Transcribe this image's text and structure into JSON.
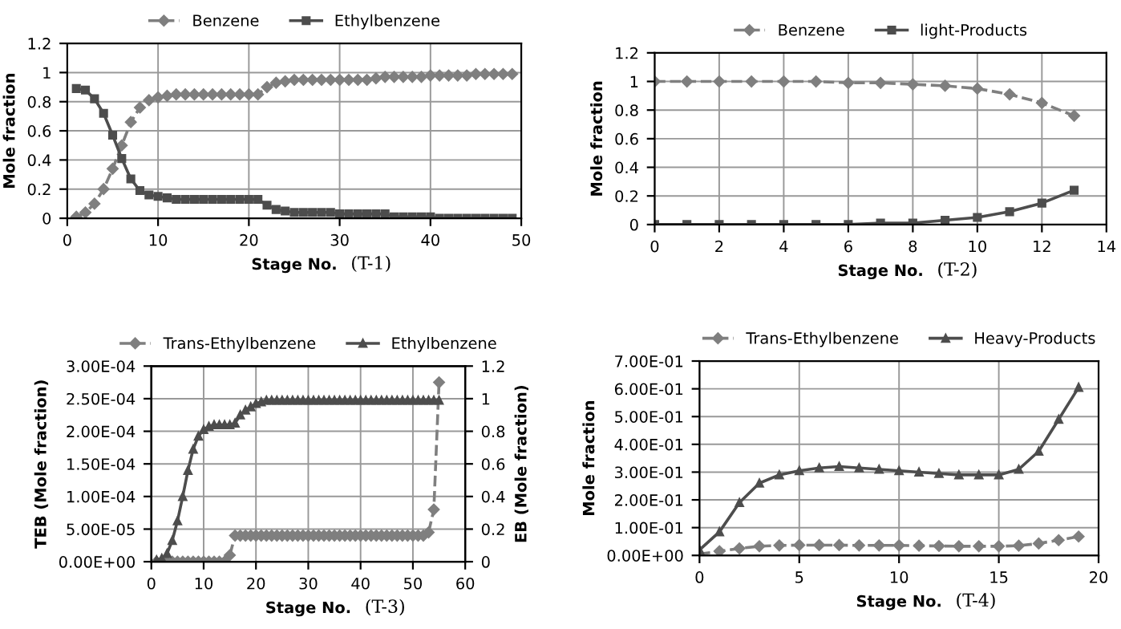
{
  "chart_data": [
    {
      "type": "line",
      "xlabel": "Stage No.",
      "ylabel": "Mole fraction",
      "annotations": [
        "(T-1)"
      ],
      "legend": "top",
      "grid": true,
      "x": [
        1,
        2,
        3,
        4,
        5,
        6,
        7,
        8,
        9,
        10,
        11,
        12,
        13,
        14,
        15,
        16,
        17,
        18,
        19,
        20,
        21,
        22,
        23,
        24,
        25,
        26,
        27,
        28,
        29,
        30,
        31,
        32,
        33,
        34,
        35,
        36,
        37,
        38,
        39,
        40,
        41,
        42,
        43,
        44,
        45,
        46,
        47,
        48,
        49
      ],
      "xlim": [
        0,
        50
      ],
      "xticks": [
        0,
        10,
        20,
        30,
        40,
        50
      ],
      "ylim": [
        0,
        1.2
      ],
      "yticks": [
        0,
        0.2,
        0.4,
        0.6,
        0.8,
        1,
        1.2
      ],
      "series": [
        {
          "name": "Benzene",
          "color": "#7f7f7f",
          "line_style": "dashed",
          "marker": "diamond",
          "values": [
            0.01,
            0.04,
            0.1,
            0.2,
            0.34,
            0.5,
            0.66,
            0.76,
            0.81,
            0.83,
            0.84,
            0.85,
            0.85,
            0.85,
            0.85,
            0.85,
            0.85,
            0.85,
            0.85,
            0.85,
            0.85,
            0.9,
            0.93,
            0.94,
            0.95,
            0.95,
            0.95,
            0.95,
            0.95,
            0.95,
            0.95,
            0.95,
            0.95,
            0.96,
            0.97,
            0.97,
            0.97,
            0.97,
            0.97,
            0.98,
            0.98,
            0.98,
            0.98,
            0.98,
            0.99,
            0.99,
            0.99,
            0.99,
            0.99
          ]
        },
        {
          "name": "Ethylbenzene",
          "color": "#4d4d4d",
          "line_style": "solid",
          "marker": "square",
          "values": [
            0.89,
            0.88,
            0.82,
            0.72,
            0.57,
            0.41,
            0.27,
            0.19,
            0.16,
            0.15,
            0.14,
            0.13,
            0.13,
            0.13,
            0.13,
            0.13,
            0.13,
            0.13,
            0.13,
            0.13,
            0.13,
            0.09,
            0.06,
            0.05,
            0.04,
            0.04,
            0.04,
            0.04,
            0.04,
            0.03,
            0.03,
            0.03,
            0.03,
            0.03,
            0.03,
            0.01,
            0.01,
            0.01,
            0.01,
            0.01,
            0,
            0,
            0,
            0,
            0,
            0,
            0,
            0,
            0
          ]
        }
      ]
    },
    {
      "type": "line",
      "xlabel": "Stage No.",
      "ylabel": "Mole fraction",
      "annotations": [
        "(T-2)"
      ],
      "legend": "top",
      "grid": true,
      "x": [
        0,
        1,
        2,
        3,
        4,
        5,
        6,
        7,
        8,
        9,
        10,
        11,
        12,
        13
      ],
      "xlim": [
        0,
        14
      ],
      "xticks": [
        0,
        2,
        4,
        6,
        8,
        10,
        12,
        14
      ],
      "ylim": [
        0,
        1.2
      ],
      "yticks": [
        0,
        0.2,
        0.4,
        0.6,
        0.8,
        1,
        1.2
      ],
      "series": [
        {
          "name": "Benzene",
          "color": "#7f7f7f",
          "line_style": "dashed",
          "marker": "diamond",
          "values": [
            1,
            1,
            1,
            1,
            1,
            1,
            0.99,
            0.99,
            0.98,
            0.97,
            0.95,
            0.91,
            0.85,
            0.76
          ]
        },
        {
          "name": "light-Products",
          "color": "#4d4d4d",
          "line_style": "solid",
          "marker": "square",
          "values": [
            0,
            0,
            0,
            0,
            0,
            0,
            0,
            0.01,
            0.01,
            0.03,
            0.05,
            0.09,
            0.15,
            0.24
          ]
        }
      ]
    },
    {
      "type": "line",
      "xlabel": "Stage No.",
      "ylabel": "TEB (Mole fraction)",
      "y2label": "EB (Mole fraction)",
      "annotations": [
        "(T-3)"
      ],
      "legend": "top",
      "grid": true,
      "x": [
        1,
        2,
        3,
        4,
        5,
        6,
        7,
        8,
        9,
        10,
        11,
        12,
        13,
        14,
        15,
        16,
        17,
        18,
        19,
        20,
        21,
        22,
        23,
        24,
        25,
        26,
        27,
        28,
        29,
        30,
        31,
        32,
        33,
        34,
        35,
        36,
        37,
        38,
        39,
        40,
        41,
        42,
        43,
        44,
        45,
        46,
        47,
        48,
        49,
        50,
        51,
        52,
        53,
        54,
        55
      ],
      "xlim": [
        0,
        60
      ],
      "xticks": [
        0,
        10,
        20,
        30,
        40,
        50,
        60
      ],
      "ylim": [
        0,
        0.0003
      ],
      "yticks": [
        {
          "value": 0,
          "label": "0.00E+00"
        },
        {
          "value": 5e-05,
          "label": "5.00E-05"
        },
        {
          "value": 0.0001,
          "label": "1.00E-04"
        },
        {
          "value": 0.00015,
          "label": "1.50E-04"
        },
        {
          "value": 0.0002,
          "label": "2.00E-04"
        },
        {
          "value": 0.00025,
          "label": "2.50E-04"
        },
        {
          "value": 0.0003,
          "label": "3.00E-04"
        }
      ],
      "y2lim": [
        0,
        1.2
      ],
      "y2ticks": [
        0,
        0.2,
        0.4,
        0.6,
        0.8,
        1,
        1.2
      ],
      "series": [
        {
          "name": "Trans-Ethylbenzene",
          "color": "#7f7f7f",
          "line_style": "dashed",
          "marker": "diamond",
          "values": [
            0,
            0,
            0,
            0,
            0,
            0,
            0,
            0,
            0,
            0,
            0,
            0,
            0,
            0,
            1e-05,
            4e-05,
            4e-05,
            4e-05,
            4e-05,
            4e-05,
            4e-05,
            4e-05,
            4e-05,
            4e-05,
            4e-05,
            4e-05,
            4e-05,
            4e-05,
            4e-05,
            4e-05,
            4e-05,
            4e-05,
            4e-05,
            4e-05,
            4e-05,
            4e-05,
            4e-05,
            4e-05,
            4e-05,
            4e-05,
            4e-05,
            4e-05,
            4e-05,
            4e-05,
            4e-05,
            4e-05,
            4e-05,
            4e-05,
            4e-05,
            4e-05,
            4e-05,
            4e-05,
            4.5e-05,
            8e-05,
            0.000275
          ]
        },
        {
          "name": "Ethylbenzene",
          "color": "#4d4d4d",
          "line_style": "solid",
          "marker": "triangle",
          "axis": "y2",
          "values": [
            0.01,
            0.02,
            0.05,
            0.13,
            0.25,
            0.4,
            0.56,
            0.69,
            0.77,
            0.81,
            0.83,
            0.84,
            0.84,
            0.84,
            0.84,
            0.85,
            0.9,
            0.93,
            0.95,
            0.97,
            0.98,
            0.99,
            0.99,
            0.99,
            0.99,
            0.99,
            0.99,
            0.99,
            0.99,
            0.99,
            0.99,
            0.99,
            0.99,
            0.99,
            0.99,
            0.99,
            0.99,
            0.99,
            0.99,
            0.99,
            0.99,
            0.99,
            0.99,
            0.99,
            0.99,
            0.99,
            0.99,
            0.99,
            0.99,
            0.99,
            0.99,
            0.99,
            0.99,
            0.99,
            0.99
          ]
        }
      ]
    },
    {
      "type": "line",
      "xlabel": "Stage No.",
      "ylabel": "Mole fraction",
      "annotations": [
        "(T-4)"
      ],
      "legend": "top",
      "grid": true,
      "x": [
        0,
        1,
        2,
        3,
        4,
        5,
        6,
        7,
        8,
        9,
        10,
        11,
        12,
        13,
        14,
        15,
        16,
        17,
        18,
        19
      ],
      "xlim": [
        0,
        20
      ],
      "xticks": [
        0,
        5,
        10,
        15,
        20
      ],
      "ylim": [
        0,
        0.7
      ],
      "yticks": [
        {
          "value": 0,
          "label": "0.00E+00"
        },
        {
          "value": 0.1,
          "label": "1.00E-01"
        },
        {
          "value": 0.2,
          "label": "2.00E-01"
        },
        {
          "value": 0.3,
          "label": "3.00E-01"
        },
        {
          "value": 0.4,
          "label": "4.00E-01"
        },
        {
          "value": 0.5,
          "label": "5.00E-01"
        },
        {
          "value": 0.6,
          "label": "6.00E-01"
        },
        {
          "value": 0.7,
          "label": "7.00E-01"
        }
      ],
      "series": [
        {
          "name": "Trans-Ethylbenzene",
          "color": "#7f7f7f",
          "line_style": "dashed",
          "marker": "diamond",
          "values": [
            0.005,
            0.015,
            0.025,
            0.033,
            0.036,
            0.037,
            0.037,
            0.037,
            0.036,
            0.036,
            0.036,
            0.035,
            0.034,
            0.033,
            0.033,
            0.033,
            0.035,
            0.043,
            0.055,
            0.068
          ]
        },
        {
          "name": "Heavy-Products",
          "color": "#4d4d4d",
          "line_style": "solid",
          "marker": "triangle",
          "values": [
            0.02,
            0.085,
            0.19,
            0.26,
            0.29,
            0.305,
            0.315,
            0.32,
            0.315,
            0.31,
            0.305,
            0.3,
            0.295,
            0.29,
            0.29,
            0.29,
            0.31,
            0.375,
            0.49,
            0.605
          ]
        }
      ]
    }
  ]
}
